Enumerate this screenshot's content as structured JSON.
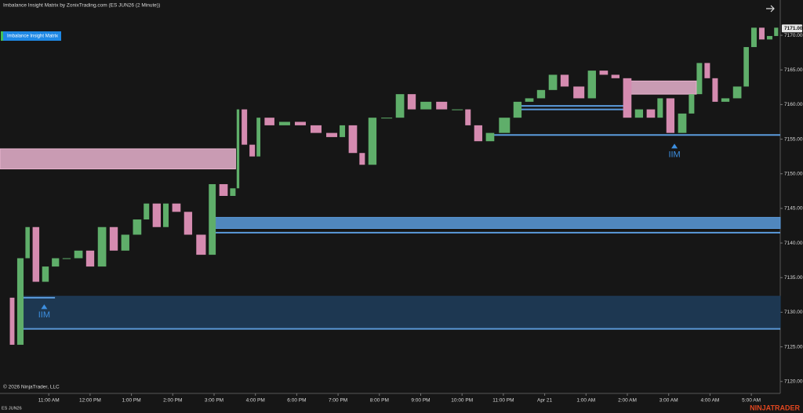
{
  "header": {
    "title": "Imbalance Insight Matrix by ZonixTrading.com (ES JUN26 (2 Minute))",
    "button": "Imbalance Insight Matrix",
    "copyright": "© 2026 NinjaTrader, LLC",
    "instrument": "ES JUN26",
    "brand": "NINJATRADER"
  },
  "chart_data": {
    "type": "candlestick",
    "x": [
      -0.99,
      -0.83,
      -0.61,
      -0.46,
      -0.23,
      0,
      0.25,
      0.53,
      0.82,
      1.1,
      1.39,
      1.67,
      1.95,
      2.24,
      2.43,
      2.71,
      2.9,
      3.19,
      3.47,
      3.8,
      4.04,
      4.33,
      4.52,
      4.61,
      4.8,
      4.99,
      5.12,
      5.46,
      5.84,
      6.22,
      6.6,
      6.98,
      7.17,
      7.46,
      7.65,
      7.93,
      8.31,
      8.6,
      8.88,
      9.26,
      9.64,
      10.02,
      10.21,
      10.49,
      10.78,
      11.16,
      11.44,
      11.73,
      12.01,
      12.3,
      12.58,
      12.96,
      13.24,
      13.53,
      13.81,
      14.1,
      14.38,
      14.67,
      14.86,
      15.14,
      15.43,
      15.62,
      15.81,
      16,
      16.19,
      16.47,
      16.76,
      16.94,
      17.13,
      17.32,
      17.51,
      17.65
    ],
    "values": [
      7132.1,
      7125.3,
      7137.8,
      7142.3,
      7134.4,
      7136.6,
      7137.8,
      7137.8,
      7138.9,
      7136.6,
      7142.3,
      7138.9,
      7141.2,
      7143.4,
      7145.7,
      7142.3,
      7145.7,
      7144.5,
      7141.2,
      7138.3,
      7148.5,
      7146.8,
      7147.9,
      7159.3,
      7154.2,
      7152.5,
      7158.1,
      7157.0,
      7157.5,
      7157.0,
      7155.9,
      7155.3,
      7157.0,
      7153.0,
      7151.3,
      7158.1,
      7158.1,
      7161.5,
      7159.3,
      7160.4,
      7159.3,
      7159.3,
      7157.0,
      7154.7,
      7155.9,
      7158.1,
      7160.4,
      7160.9,
      7162.1,
      7164.3,
      7162.6,
      7160.9,
      7164.9,
      7164.3,
      7163.8,
      7158.1,
      7159.3,
      7158.1,
      7160.9,
      7155.9,
      7158.7,
      7161.5,
      7166.0,
      7163.8,
      7160.4,
      7160.9,
      7162.6,
      7168.3,
      7171.1,
      7169.4,
      7169.9,
      7171.1
    ],
    "up_color": "#5fae6a",
    "down_color": "#d58bb0",
    "xlim": [
      -1.18,
      17.7
    ],
    "xticks": [
      {
        "value": 0,
        "label": "11:00 AM"
      },
      {
        "value": 1,
        "label": "12:00 PM"
      },
      {
        "value": 2,
        "label": "1:00 PM"
      },
      {
        "value": 3,
        "label": "2:00 PM"
      },
      {
        "value": 4,
        "label": "3:00 PM"
      },
      {
        "value": 5,
        "label": "4:00 PM"
      },
      {
        "value": 6,
        "label": "6:00 PM"
      },
      {
        "value": 7,
        "label": "7:00 PM"
      },
      {
        "value": 8,
        "label": "8:00 PM"
      },
      {
        "value": 9,
        "label": "9:00 PM"
      },
      {
        "value": 10,
        "label": "10:00 PM"
      },
      {
        "value": 11,
        "label": "11:00 PM"
      },
      {
        "value": 12,
        "label": "Apr 21"
      },
      {
        "value": 13,
        "label": "1:00 AM"
      },
      {
        "value": 14,
        "label": "2:00 AM"
      },
      {
        "value": 15,
        "label": "3:00 AM"
      },
      {
        "value": 16,
        "label": "4:00 AM"
      },
      {
        "value": 17,
        "label": "5:00 AM"
      }
    ],
    "ylim": [
      7118.5,
      7175.1
    ],
    "yticks": [
      {
        "value": 7120,
        "label": "7120.00"
      },
      {
        "value": 7125,
        "label": "7125.00"
      },
      {
        "value": 7130,
        "label": "7130.00"
      },
      {
        "value": 7135,
        "label": "7135.00"
      },
      {
        "value": 7140,
        "label": "7140.00"
      },
      {
        "value": 7145,
        "label": "7145.00"
      },
      {
        "value": 7150,
        "label": "7150.00"
      },
      {
        "value": 7155,
        "label": "7155.00"
      },
      {
        "value": 7160,
        "label": "7160.00"
      },
      {
        "value": 7165,
        "label": "7165.00"
      },
      {
        "value": 7170,
        "label": "7170.00"
      }
    ],
    "last_price": {
      "value": 7171,
      "label": "7171.00"
    },
    "zones": [
      {
        "color": "#e9b3cf",
        "from": -1.18,
        "to": 4.52,
        "low": 7150.7,
        "high": 7153.6
      },
      {
        "color": "#e9b3cf",
        "from": 14.0,
        "to": 15.67,
        "low": 7161.5,
        "high": 7163.4
      },
      {
        "color": "#5b9bdc",
        "from": 3.95,
        "to": 17.7,
        "low": 7142.1,
        "high": 7143.7
      },
      {
        "color": "#1f3d5c",
        "from": -0.7,
        "to": 17.7,
        "low": 7127.8,
        "high": 7132.3
      }
    ],
    "lines": [
      {
        "color": "#5b9bdc",
        "price": 7141.5,
        "from": 3.95,
        "to": 17.7
      },
      {
        "color": "#5b9bdc",
        "price": 7127.6,
        "from": -0.7,
        "to": 17.7
      },
      {
        "color": "#5b9bdc",
        "price": 7132.1,
        "from": -0.7,
        "to": 0.15
      },
      {
        "color": "#5b9bdc",
        "price": 7159.8,
        "from": 11.35,
        "to": 14.0
      },
      {
        "color": "#5b9bdc",
        "price": 7159.3,
        "from": 11.35,
        "to": 14.0
      },
      {
        "color": "#5b9bdc",
        "price": 7155.6,
        "from": 10.68,
        "to": 17.7
      }
    ],
    "markers": [
      {
        "x": -0.11,
        "price": 7130.8,
        "label": "IIM"
      },
      {
        "x": 15.14,
        "price": 7154.0,
        "label": "IIM"
      }
    ]
  }
}
